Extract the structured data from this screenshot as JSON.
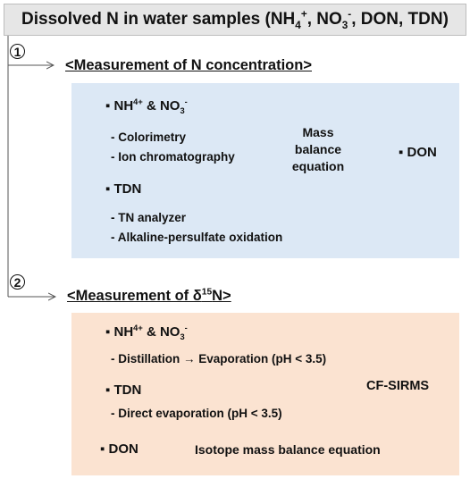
{
  "title": {
    "prefix": "Dissolved N in water samples (NH",
    "nh_sub": "4",
    "nh_sup": "+",
    "sep1": ", NO",
    "no_sub": "3",
    "no_sup": "-",
    "suffix": ", DON, TDN)"
  },
  "section1": {
    "number": "1",
    "heading": "<Measurement of N concentration>",
    "nh_label": "NH",
    "nh_sup": "4+",
    "nh_rest": " & NO",
    "no_sub": "3",
    "no_sup": "-",
    "nh_methods": [
      "- Colorimetry",
      "- Ion chromatography"
    ],
    "tdn_label": "TDN",
    "tdn_methods": [
      "- TN analyzer",
      "- Alkaline-persulfate oxidation"
    ],
    "mass_balance_lines": [
      "Mass",
      "balance",
      "equation"
    ],
    "result": "DON"
  },
  "section2": {
    "number": "2",
    "heading_prefix": "<Measurement of δ",
    "heading_sup": "15",
    "heading_suffix": "N>",
    "nh_label": "NH",
    "nh_sup": "4+",
    "nh_rest": " & NO",
    "no_sub": "3",
    "no_sup": "-",
    "nh_method": "- Distillation → Evaporation (pH < 3.5)",
    "tdn_label": "TDN",
    "tdn_method": "- Direct evaporation (pH < 3.5)",
    "instrument": "CF-SIRMS",
    "don_label": "DON",
    "equation": "Isotope mass balance equation"
  },
  "bullet": "▪"
}
